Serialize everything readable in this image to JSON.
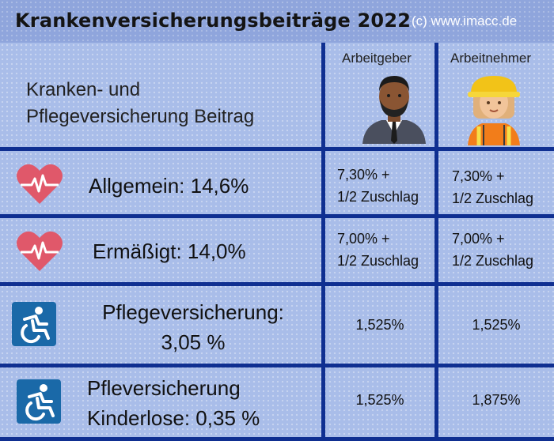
{
  "header": {
    "title": "Krankenversicherungsbeiträge 2022",
    "copyright": "(c) www.imacc.de"
  },
  "columns": {
    "employer": "Arbeitgeber",
    "employee": "Arbeitnehmer"
  },
  "intro": {
    "line1": "Kranken- und",
    "line2": "Pflegeversicherung Beitrag"
  },
  "rows": [
    {
      "label": "Allgemein: 14,6%",
      "employer_line1": "7,30% +",
      "employer_line2": "1/2 Zuschlag",
      "employee_line1": "7,30% +",
      "employee_line2": "1/2 Zuschlag",
      "icon": "heart-pulse-icon"
    },
    {
      "label": "Ermäßigt: 14,0%",
      "employer_line1": "7,00% +",
      "employer_line2": "1/2 Zuschlag",
      "employee_line1": "7,00% +",
      "employee_line2": "1/2 Zuschlag",
      "icon": "heart-pulse-icon"
    },
    {
      "label_line1": "Pflegeversicherung:",
      "label_line2": "3,05 %",
      "employer": "1,525%",
      "employee": "1,525%",
      "icon": "wheelchair-icon"
    },
    {
      "label_line1": "Pfleversicherung",
      "label_line2": "Kinderlose: 0,35 %",
      "employer": "1,525%",
      "employee": "1,875%",
      "icon": "wheelchair-icon"
    }
  ],
  "colors": {
    "grid": "#0f2f91",
    "background": "#a9bde9",
    "header": "#8fa5dc",
    "heart": "#e0586a",
    "wheelchair_bg": "#1a69a8"
  }
}
